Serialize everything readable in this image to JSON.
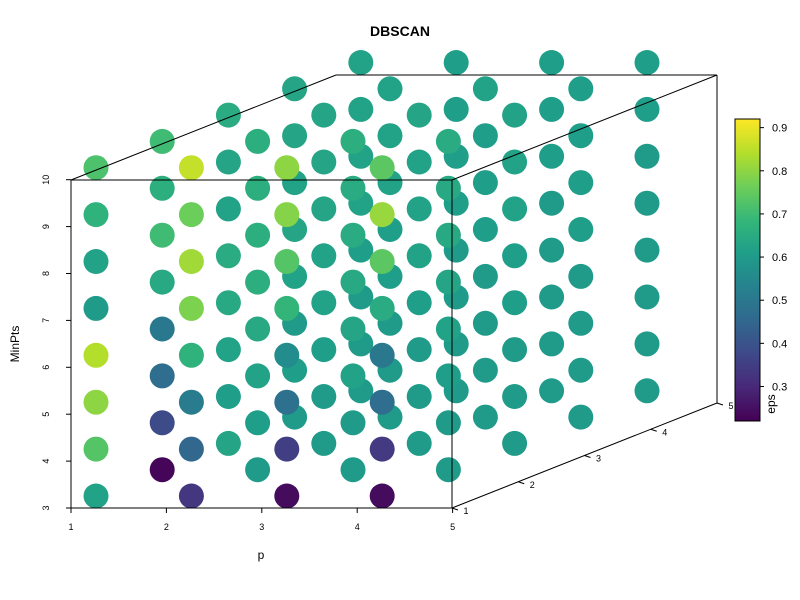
{
  "chart_data": {
    "type": "scatter3d",
    "title": "DBSCAN",
    "x": {
      "label": "p",
      "ticks": [
        "1",
        "2",
        "3",
        "4",
        "5"
      ],
      "range": [
        1,
        5
      ]
    },
    "y": {
      "label": "MinPts",
      "ticks": [
        "3",
        "4",
        "5",
        "6",
        "7",
        "8",
        "9",
        "10"
      ],
      "range": [
        3,
        10
      ]
    },
    "z": {
      "label": "",
      "ticks": [
        "1",
        "2",
        "3",
        "4",
        "5"
      ],
      "range": [
        1,
        5
      ]
    },
    "colorbar": {
      "label": "eps",
      "ticks": [
        "0.3",
        "0.4",
        "0.5",
        "0.6",
        "0.7",
        "0.8",
        "0.9"
      ],
      "range": [
        0.22,
        0.92
      ],
      "colormap": "viridis"
    },
    "grid_x": [
      1,
      2,
      3,
      4
    ],
    "grid_minpts": [
      3,
      4,
      5,
      6,
      7,
      8,
      9,
      10
    ],
    "grid_z": [
      1,
      2,
      3,
      4,
      5
    ],
    "eps": {
      "1": {
        "1": [
          0.62,
          0.73,
          0.8,
          0.84,
          0.6,
          0.62,
          0.67,
          0.72
        ],
        "2": [
          0.23,
          0.38,
          0.47,
          0.5,
          0.64,
          0.7,
          0.66,
          0.7
        ],
        "3": [
          0.63,
          0.61,
          0.62,
          0.64,
          0.65,
          0.62,
          0.63,
          0.65
        ],
        "4": [
          0.6,
          0.61,
          0.6,
          0.62,
          0.63,
          0.62,
          0.63,
          0.63
        ],
        "5": [
          0.6,
          0.6,
          0.6,
          0.61,
          0.62,
          0.62,
          0.62,
          0.62
        ]
      },
      "2": {
        "1": [
          0.33,
          0.45,
          0.51,
          0.67,
          0.78,
          0.82,
          0.76,
          0.86
        ],
        "2": [
          0.6,
          0.61,
          0.62,
          0.64,
          0.66,
          0.66,
          0.66,
          0.66
        ],
        "3": [
          0.6,
          0.6,
          0.61,
          0.62,
          0.62,
          0.63,
          0.63,
          0.63
        ],
        "4": [
          0.6,
          0.6,
          0.6,
          0.61,
          0.61,
          0.62,
          0.62,
          0.62
        ],
        "5": [
          0.6,
          0.6,
          0.6,
          0.6,
          0.61,
          0.61,
          0.61,
          0.61
        ]
      },
      "3": {
        "1": [
          0.24,
          0.35,
          0.48,
          0.56,
          0.68,
          0.73,
          0.79,
          0.8
        ],
        "2": [
          0.6,
          0.6,
          0.62,
          0.63,
          0.64,
          0.65,
          0.65,
          0.66
        ],
        "3": [
          0.6,
          0.6,
          0.6,
          0.61,
          0.62,
          0.62,
          0.62,
          0.63
        ],
        "4": [
          0.6,
          0.6,
          0.6,
          0.6,
          0.61,
          0.61,
          0.61,
          0.62
        ],
        "5": [
          0.6,
          0.6,
          0.6,
          0.6,
          0.6,
          0.61,
          0.61,
          0.61
        ]
      },
      "4": {
        "1": [
          0.24,
          0.34,
          0.47,
          0.5,
          0.65,
          0.74,
          0.81,
          0.74
        ],
        "2": [
          0.6,
          0.6,
          0.61,
          0.62,
          0.63,
          0.64,
          0.64,
          0.65
        ],
        "3": [
          0.6,
          0.6,
          0.6,
          0.61,
          0.61,
          0.62,
          0.62,
          0.62
        ],
        "4": [
          0.6,
          0.6,
          0.6,
          0.6,
          0.61,
          0.61,
          0.61,
          0.61
        ],
        "5": [
          0.6,
          0.6,
          0.6,
          0.6,
          0.6,
          0.6,
          0.61,
          0.61
        ]
      }
    }
  }
}
